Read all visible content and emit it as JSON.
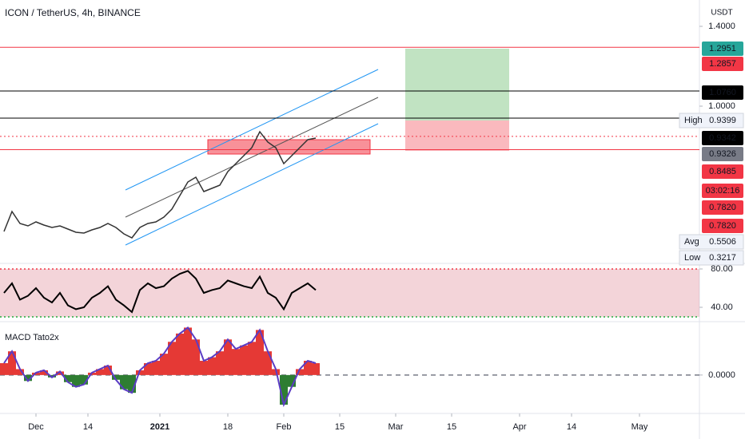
{
  "chart_data": [
    {
      "type": "line",
      "title": "ICON / TetherUS, 4h, BINANCE",
      "axis_label": "USDT",
      "color": "#333333",
      "x": [
        "2020-11-23",
        "2020-11-25",
        "2020-11-27",
        "2020-11-29",
        "2020-12-01",
        "2020-12-03",
        "2020-12-05",
        "2020-12-07",
        "2020-12-09",
        "2020-12-11",
        "2020-12-13",
        "2020-12-15",
        "2020-12-17",
        "2020-12-19",
        "2020-12-21",
        "2020-12-23",
        "2020-12-25",
        "2020-12-27",
        "2020-12-29",
        "2020-12-31",
        "2021-01-02",
        "2021-01-04",
        "2021-01-06",
        "2021-01-08",
        "2021-01-10",
        "2021-01-12",
        "2021-01-14",
        "2021-01-16",
        "2021-01-18",
        "2021-01-20",
        "2021-01-22",
        "2021-01-24",
        "2021-01-26",
        "2021-01-28",
        "2021-01-30",
        "2021-02-01",
        "2021-02-03",
        "2021-02-05",
        "2021-02-07",
        "2021-02-09"
      ],
      "values": [
        0.372,
        0.472,
        0.412,
        0.4,
        0.42,
        0.404,
        0.392,
        0.4,
        0.384,
        0.368,
        0.364,
        0.38,
        0.392,
        0.412,
        0.392,
        0.36,
        0.34,
        0.392,
        0.412,
        0.42,
        0.444,
        0.484,
        0.552,
        0.62,
        0.644,
        0.572,
        0.588,
        0.604,
        0.672,
        0.712,
        0.752,
        0.792,
        0.872,
        0.82,
        0.792,
        0.712,
        0.752,
        0.792,
        0.832,
        0.84
      ],
      "xlim": [
        "2020-11-22",
        "2021-05-16"
      ],
      "xticks": [
        {
          "value": "2020-12-01",
          "label": "Dec"
        },
        {
          "value": "2020-12-14",
          "label": "14"
        },
        {
          "value": "2021-01-01",
          "label": "2021"
        },
        {
          "value": "2021-01-18",
          "label": "18"
        },
        {
          "value": "2021-02-01",
          "label": "Feb"
        },
        {
          "value": "2021-02-15",
          "label": "15"
        },
        {
          "value": "2021-03-01",
          "label": "Mar"
        },
        {
          "value": "2021-03-15",
          "label": "15"
        },
        {
          "value": "2021-04-01",
          "label": "Apr"
        },
        {
          "value": "2021-04-14",
          "label": "14"
        },
        {
          "value": "2021-05-01",
          "label": "May"
        }
      ],
      "ylim": [
        0.212,
        1.532
      ],
      "yticks": [
        {
          "value": 1.4,
          "label": "1.4000"
        },
        {
          "value": 1.0,
          "label": "1.0000"
        }
      ],
      "price_labels": [
        {
          "value": 1.2951,
          "label": "1.2951",
          "color": "#26a69a"
        },
        {
          "value": 1.2857,
          "label": "1.2857",
          "color": "#f23645"
        },
        {
          "value": 1.076,
          "label": "1.0760",
          "color": "#000000"
        },
        {
          "value": 0.9342,
          "label": "0.9342",
          "color": "#000000"
        },
        {
          "value": 0.9326,
          "label": "0.9326",
          "color": "#787b86"
        },
        {
          "value": 0.8485,
          "label": "0.8485",
          "color": "#f23645"
        },
        {
          "value": 0.782,
          "label": "0.7820",
          "color": "#f23645"
        },
        {
          "value": 0.782,
          "label": "0.7820",
          "color": "#f23645"
        }
      ],
      "countdown": "03:02:16",
      "stats": [
        {
          "name": "High",
          "value": 0.9399,
          "label": "0.9399"
        },
        {
          "name": "Avg",
          "value": 0.5506,
          "label": "0.5506"
        },
        {
          "name": "Low",
          "value": 0.3217,
          "label": "0.3217"
        }
      ]
    },
    {
      "type": "line",
      "color": "#000000",
      "values": [
        55,
        65,
        48,
        52,
        60,
        50,
        45,
        55,
        42,
        38,
        40,
        50,
        55,
        62,
        48,
        42,
        35,
        58,
        65,
        60,
        62,
        70,
        75,
        78,
        70,
        55,
        58,
        60,
        68,
        65,
        62,
        60,
        72,
        55,
        50,
        38,
        55,
        60,
        65,
        58
      ],
      "ylim": [
        25,
        85.8
      ],
      "yticks": [
        {
          "value": 80,
          "label": "80.00"
        },
        {
          "value": 40,
          "label": "40.00"
        }
      ],
      "band": [
        30,
        80
      ]
    },
    {
      "type": "bar",
      "title": "MACD Tato2x",
      "colors": [
        "#e53935",
        "#2e7d32"
      ],
      "line_color": "#5b3cc4",
      "values": [
        0.01,
        0.02,
        0.005,
        -0.005,
        0.002,
        0.004,
        -0.002,
        0.003,
        -0.006,
        -0.01,
        -0.008,
        0.002,
        0.005,
        0.008,
        -0.004,
        -0.012,
        -0.015,
        0.004,
        0.01,
        0.012,
        0.018,
        0.028,
        0.035,
        0.04,
        0.03,
        0.012,
        0.015,
        0.02,
        0.03,
        0.022,
        0.025,
        0.028,
        0.038,
        0.02,
        0.005,
        -0.025,
        -0.01,
        0.005,
        0.012,
        0.01
      ],
      "ylim": [
        -0.0324,
        0.045
      ],
      "yticks": [
        {
          "value": 0,
          "label": "0.0000"
        }
      ]
    }
  ]
}
